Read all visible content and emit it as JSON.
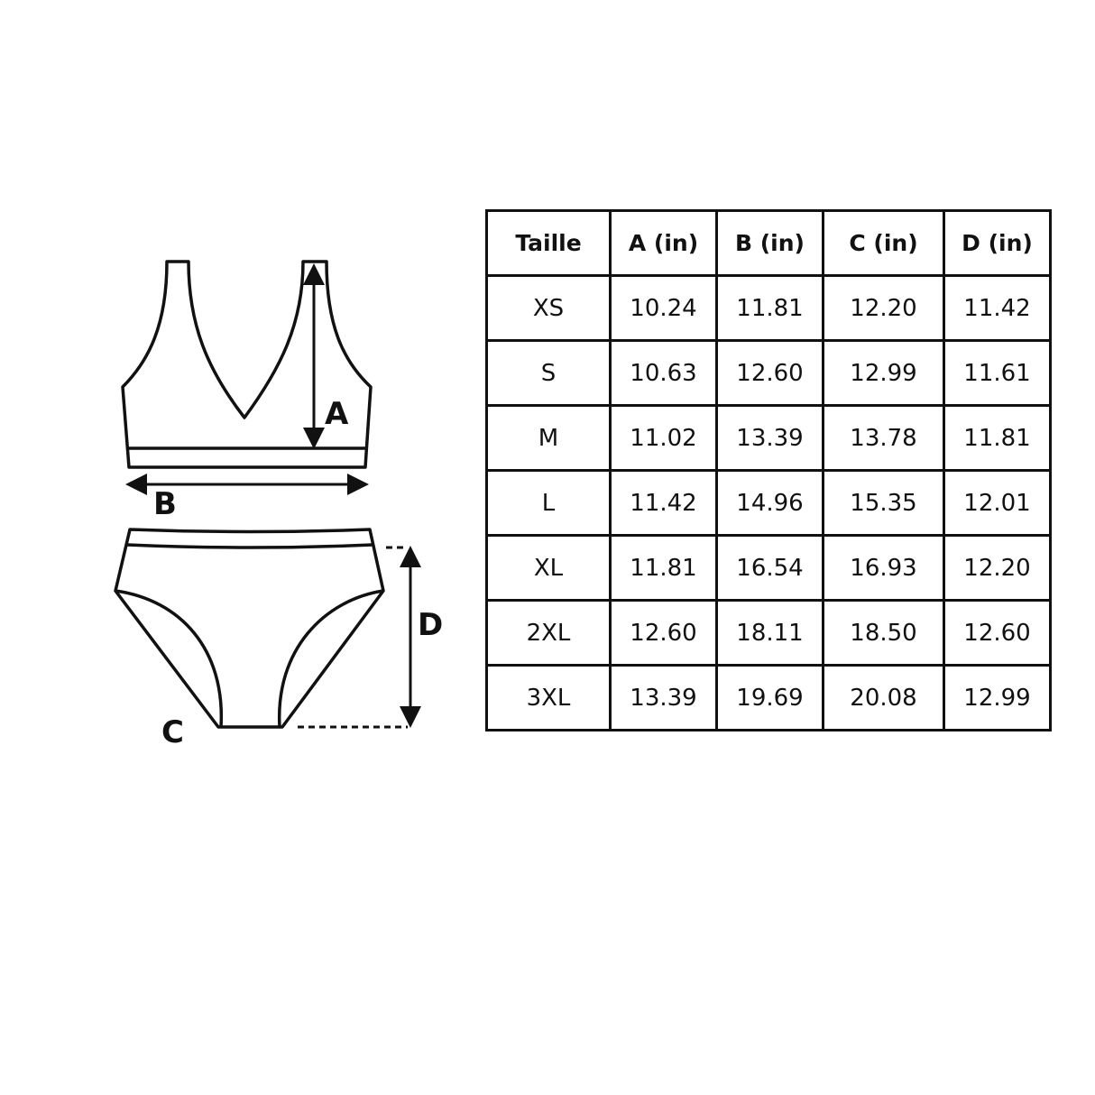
{
  "illustration": {
    "labels": {
      "a": "A",
      "b": "B",
      "c": "C",
      "d": "D"
    }
  },
  "table": {
    "headers": [
      "Taille",
      "A (in)",
      "B (in)",
      "C (in)",
      "D (in)"
    ],
    "rows": [
      [
        "XS",
        "10.24",
        "11.81",
        "12.20",
        "11.42"
      ],
      [
        "S",
        "10.63",
        "12.60",
        "12.99",
        "11.61"
      ],
      [
        "M",
        "11.02",
        "13.39",
        "13.78",
        "11.81"
      ],
      [
        "L",
        "11.42",
        "14.96",
        "15.35",
        "12.01"
      ],
      [
        "XL",
        "11.81",
        "16.54",
        "16.93",
        "12.20"
      ],
      [
        "2XL",
        "12.60",
        "18.11",
        "18.50",
        "12.60"
      ],
      [
        "3XL",
        "13.39",
        "19.69",
        "20.08",
        "12.99"
      ]
    ]
  }
}
